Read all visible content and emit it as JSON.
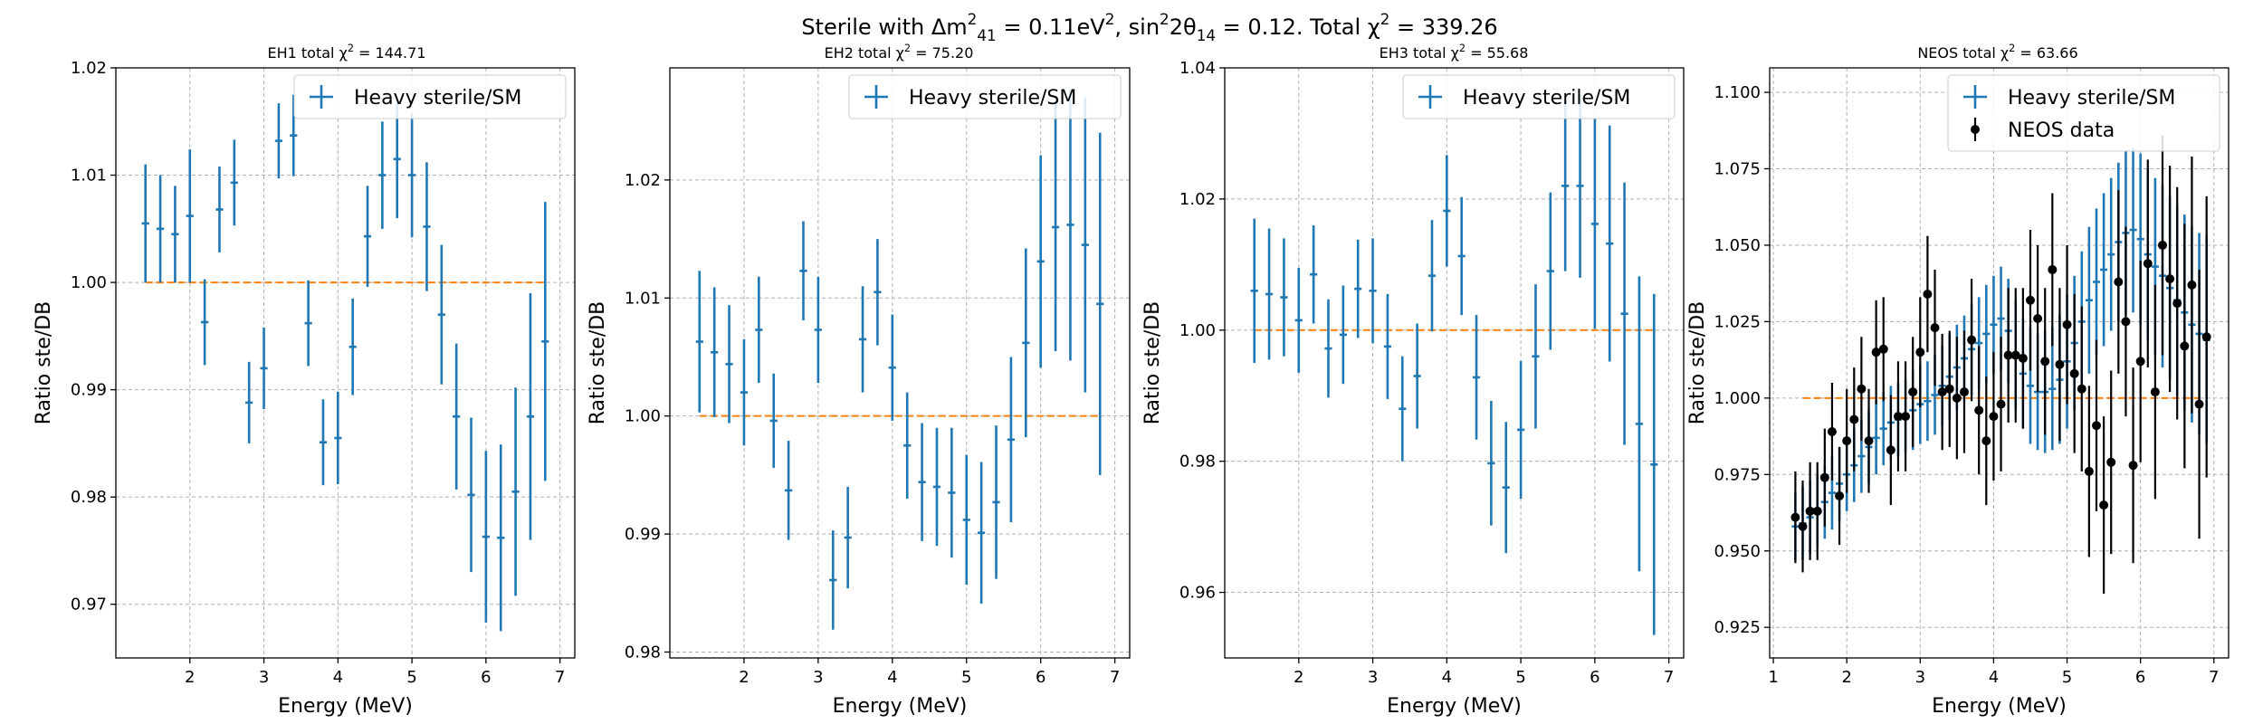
{
  "suptitle_parts": [
    "Sterile with Δm",
    "2",
    "41",
    " = 0.11eV",
    "2",
    ", sin",
    "2",
    "2θ",
    "14",
    " = 0.12. Total χ",
    "2",
    " = 339.26"
  ],
  "colors": {
    "model": "#1f77b4",
    "reference": "#ff7f0e",
    "data": "#000000",
    "grid": "#b0b0b0"
  },
  "chart_data": [
    {
      "type": "scatter",
      "title_parts": [
        "EH1 total χ",
        "2",
        " = 144.71"
      ],
      "xlabel": "Energy (MeV)",
      "ylabel": "Ratio ste/DB",
      "xlim": [
        1.0,
        7.2
      ],
      "ylim": [
        0.965,
        1.02
      ],
      "xticks": [
        2,
        3,
        4,
        5,
        6,
        7
      ],
      "yticks": [
        0.97,
        0.98,
        0.99,
        1.0,
        1.01,
        1.02
      ],
      "ytick_labels": [
        "0.97",
        "0.98",
        "0.99",
        "1.00",
        "1.01",
        "1.02"
      ],
      "grid": true,
      "legend_position": "upper right",
      "legend": [
        "Heavy sterile/SM"
      ],
      "reference_line": {
        "y": 1.0,
        "x": [
          1.4,
          6.8
        ]
      },
      "series": [
        {
          "name": "Heavy sterile/SM",
          "style": "errorbar-cross",
          "xerr": 0.05,
          "x": [
            1.4,
            1.6,
            1.8,
            2.0,
            2.2,
            2.4,
            2.6,
            2.8,
            3.0,
            3.2,
            3.4,
            3.6,
            3.8,
            4.0,
            4.2,
            4.4,
            4.6,
            4.8,
            5.0,
            5.2,
            5.4,
            5.6,
            5.8,
            6.0,
            6.2,
            6.4,
            6.6,
            6.8
          ],
          "y": [
            1.0055,
            1.005,
            1.0045,
            1.0062,
            0.9963,
            1.0068,
            1.0093,
            0.9888,
            0.992,
            1.0132,
            1.0137,
            0.9962,
            0.9851,
            0.9855,
            0.994,
            1.0043,
            1.01,
            1.0115,
            1.01,
            1.0052,
            0.997,
            0.9875,
            0.9802,
            0.9763,
            0.9762,
            0.9805,
            0.9875,
            0.9945
          ],
          "yerr": [
            0.0055,
            0.005,
            0.0045,
            0.0062,
            0.004,
            0.004,
            0.004,
            0.0038,
            0.0038,
            0.0035,
            0.0038,
            0.004,
            0.004,
            0.0043,
            0.0045,
            0.0047,
            0.005,
            0.0055,
            0.0058,
            0.006,
            0.0065,
            0.0068,
            0.0072,
            0.008,
            0.0087,
            0.0097,
            0.0115,
            0.013
          ]
        }
      ]
    },
    {
      "type": "scatter",
      "title_parts": [
        "EH2 total χ",
        "2",
        " = 75.20"
      ],
      "xlabel": "Energy (MeV)",
      "ylabel": "Ratio ste/DB",
      "xlim": [
        1.0,
        7.2
      ],
      "ylim": [
        0.9795,
        1.0295
      ],
      "xticks": [
        2,
        3,
        4,
        5,
        6,
        7
      ],
      "yticks": [
        0.98,
        0.99,
        1.0,
        1.01,
        1.02
      ],
      "ytick_labels": [
        "0.98",
        "0.99",
        "1.00",
        "1.01",
        "1.02"
      ],
      "grid": true,
      "legend_position": "upper right",
      "legend": [
        "Heavy sterile/SM"
      ],
      "reference_line": {
        "y": 1.0,
        "x": [
          1.4,
          6.8
        ]
      },
      "series": [
        {
          "name": "Heavy sterile/SM",
          "style": "errorbar-cross",
          "xerr": 0.05,
          "x": [
            1.4,
            1.6,
            1.8,
            2.0,
            2.2,
            2.4,
            2.6,
            2.8,
            3.0,
            3.2,
            3.4,
            3.6,
            3.8,
            4.0,
            4.2,
            4.4,
            4.6,
            4.8,
            5.0,
            5.2,
            5.4,
            5.6,
            5.8,
            6.0,
            6.2,
            6.4,
            6.6,
            6.8
          ],
          "y": [
            1.0063,
            1.0054,
            1.0044,
            1.002,
            1.0073,
            0.9996,
            0.9937,
            1.0123,
            1.0073,
            0.9861,
            0.9897,
            1.0065,
            1.0105,
            1.0041,
            0.9975,
            0.9944,
            0.994,
            0.9935,
            0.9912,
            0.9901,
            0.9927,
            0.998,
            1.0062,
            1.0131,
            1.016,
            1.0162,
            1.0145,
            1.0095
          ],
          "yerr": [
            0.006,
            0.0055,
            0.005,
            0.0045,
            0.0045,
            0.004,
            0.0042,
            0.0042,
            0.0045,
            0.0042,
            0.0043,
            0.0045,
            0.0045,
            0.0045,
            0.0045,
            0.005,
            0.005,
            0.0055,
            0.0055,
            0.006,
            0.0065,
            0.007,
            0.008,
            0.009,
            0.0105,
            0.0115,
            0.0125,
            0.0145
          ]
        }
      ]
    },
    {
      "type": "scatter",
      "title_parts": [
        "EH3 total χ",
        "2",
        " = 55.68"
      ],
      "xlabel": "Energy (MeV)",
      "ylabel": "Ratio ste/DB",
      "xlim": [
        1.0,
        7.2
      ],
      "ylim": [
        0.95,
        1.04
      ],
      "xticks": [
        2,
        3,
        4,
        5,
        6,
        7
      ],
      "yticks": [
        0.96,
        0.98,
        1.0,
        1.02,
        1.04
      ],
      "ytick_labels": [
        "0.96",
        "0.98",
        "1.00",
        "1.02",
        "1.04"
      ],
      "grid": true,
      "legend_position": "upper right",
      "legend": [
        "Heavy sterile/SM"
      ],
      "reference_line": {
        "y": 1.0,
        "x": [
          1.4,
          6.8
        ]
      },
      "series": [
        {
          "name": "Heavy sterile/SM",
          "style": "errorbar-cross",
          "xerr": 0.05,
          "x": [
            1.4,
            1.6,
            1.8,
            2.0,
            2.2,
            2.4,
            2.6,
            2.8,
            3.0,
            3.2,
            3.4,
            3.6,
            3.8,
            4.0,
            4.2,
            4.4,
            4.6,
            4.8,
            5.0,
            5.2,
            5.4,
            5.6,
            5.8,
            6.0,
            6.2,
            6.4,
            6.6,
            6.8
          ],
          "y": [
            1.006,
            1.0055,
            1.005,
            1.0015,
            1.0085,
            0.9972,
            0.9993,
            1.0063,
            1.006,
            0.9975,
            0.988,
            0.993,
            1.0083,
            1.0182,
            1.0113,
            0.9928,
            0.9797,
            0.976,
            0.9848,
            0.996,
            1.009,
            1.022,
            1.022,
            1.0162,
            1.0132,
            1.0025,
            0.9857,
            0.9795
          ],
          "yerr": [
            0.011,
            0.01,
            0.009,
            0.008,
            0.0075,
            0.0075,
            0.0075,
            0.0075,
            0.008,
            0.008,
            0.008,
            0.008,
            0.0085,
            0.0085,
            0.009,
            0.0095,
            0.0095,
            0.01,
            0.0105,
            0.011,
            0.012,
            0.013,
            0.014,
            0.016,
            0.018,
            0.02,
            0.0225,
            0.026
          ]
        }
      ]
    },
    {
      "type": "scatter",
      "title_parts": [
        "NEOS total χ",
        "2",
        " = 63.66"
      ],
      "xlabel": "Energy (MeV)",
      "ylabel": "Ratio ste/DB",
      "xlim": [
        0.95,
        7.2
      ],
      "ylim": [
        0.915,
        1.108
      ],
      "xticks": [
        1,
        2,
        3,
        4,
        5,
        6,
        7
      ],
      "yticks": [
        0.925,
        0.95,
        0.975,
        1.0,
        1.025,
        1.05,
        1.075,
        1.1
      ],
      "ytick_labels": [
        "0.925",
        "0.950",
        "0.975",
        "1.000",
        "1.025",
        "1.050",
        "1.075",
        "1.100"
      ],
      "grid": true,
      "legend_position": "upper right",
      "legend": [
        "Heavy sterile/SM",
        "NEOS data"
      ],
      "reference_line": {
        "y": 1.0,
        "x": [
          1.4,
          6.8
        ]
      },
      "series": [
        {
          "name": "Heavy sterile/SM",
          "style": "errorbar-cross",
          "xerr": 0.05,
          "x": [
            1.3,
            1.4,
            1.5,
            1.6,
            1.7,
            1.8,
            1.9,
            2.0,
            2.1,
            2.2,
            2.3,
            2.4,
            2.5,
            2.6,
            2.7,
            2.8,
            2.9,
            3.0,
            3.1,
            3.2,
            3.3,
            3.4,
            3.5,
            3.6,
            3.7,
            3.8,
            3.9,
            4.0,
            4.1,
            4.2,
            4.3,
            4.4,
            4.5,
            4.6,
            4.7,
            4.8,
            4.9,
            5.0,
            5.1,
            5.2,
            5.3,
            5.4,
            5.5,
            5.6,
            5.7,
            5.8,
            5.9,
            6.0,
            6.1,
            6.2,
            6.3,
            6.4,
            6.5,
            6.6,
            6.7,
            6.8,
            6.9
          ],
          "y": [
            0.958,
            0.959,
            0.961,
            0.963,
            0.966,
            0.969,
            0.972,
            0.975,
            0.978,
            0.981,
            0.984,
            0.987,
            0.99,
            0.992,
            0.993,
            0.994,
            0.996,
            0.998,
            0.999,
            1.001,
            1.004,
            1.007,
            1.01,
            1.013,
            1.016,
            1.018,
            1.021,
            1.024,
            1.026,
            1.022,
            1.014,
            1.008,
            1.004,
            1.002,
            1.002,
            1.003,
            1.006,
            1.012,
            1.018,
            1.025,
            1.032,
            1.038,
            1.042,
            1.047,
            1.051,
            1.054,
            1.055,
            1.052,
            1.047,
            1.043,
            1.04,
            1.036,
            1.032,
            1.028,
            1.024,
            1.021,
            1.019
          ],
          "yerr": [
            0.011,
            0.012,
            0.012,
            0.012,
            0.012,
            0.012,
            0.012,
            0.012,
            0.012,
            0.012,
            0.012,
            0.012,
            0.012,
            0.012,
            0.012,
            0.012,
            0.013,
            0.013,
            0.013,
            0.013,
            0.013,
            0.014,
            0.014,
            0.014,
            0.015,
            0.015,
            0.016,
            0.016,
            0.017,
            0.017,
            0.018,
            0.018,
            0.019,
            0.019,
            0.02,
            0.02,
            0.021,
            0.022,
            0.022,
            0.023,
            0.024,
            0.024,
            0.025,
            0.025,
            0.026,
            0.027,
            0.027,
            0.028,
            0.028,
            0.029,
            0.03,
            0.03,
            0.031,
            0.032,
            0.032,
            0.033,
            0.034
          ]
        },
        {
          "name": "NEOS data",
          "style": "errorbar-dot",
          "x": [
            1.3,
            1.4,
            1.5,
            1.6,
            1.7,
            1.8,
            1.9,
            2.0,
            2.1,
            2.2,
            2.3,
            2.4,
            2.5,
            2.6,
            2.7,
            2.8,
            2.9,
            3.0,
            3.1,
            3.2,
            3.3,
            3.4,
            3.5,
            3.6,
            3.7,
            3.8,
            3.9,
            4.0,
            4.1,
            4.2,
            4.3,
            4.4,
            4.5,
            4.6,
            4.7,
            4.8,
            4.9,
            5.0,
            5.1,
            5.2,
            5.3,
            5.4,
            5.5,
            5.6,
            5.7,
            5.8,
            5.9,
            6.0,
            6.1,
            6.2,
            6.3,
            6.4,
            6.5,
            6.6,
            6.7,
            6.8,
            6.9
          ],
          "y": [
            0.961,
            0.958,
            0.963,
            0.963,
            0.974,
            0.989,
            0.968,
            0.986,
            0.993,
            1.003,
            0.986,
            1.015,
            1.016,
            0.983,
            0.994,
            0.994,
            1.002,
            1.015,
            1.034,
            1.023,
            1.002,
            1.003,
            1.0,
            1.002,
            1.019,
            0.996,
            0.986,
            0.994,
            0.998,
            1.014,
            1.014,
            1.013,
            1.032,
            1.026,
            1.012,
            1.042,
            1.011,
            1.024,
            1.008,
            1.003,
            0.976,
            0.991,
            0.965,
            0.979,
            1.038,
            1.025,
            0.978,
            1.012,
            1.044,
            1.002,
            1.05,
            1.039,
            1.031,
            1.017,
            1.037,
            0.998,
            1.02
          ],
          "yerr": [
            0.015,
            0.015,
            0.016,
            0.016,
            0.016,
            0.016,
            0.016,
            0.017,
            0.017,
            0.017,
            0.017,
            0.017,
            0.017,
            0.018,
            0.018,
            0.018,
            0.018,
            0.018,
            0.019,
            0.019,
            0.019,
            0.019,
            0.02,
            0.02,
            0.02,
            0.021,
            0.021,
            0.021,
            0.022,
            0.022,
            0.022,
            0.023,
            0.023,
            0.024,
            0.024,
            0.025,
            0.025,
            0.026,
            0.026,
            0.027,
            0.028,
            0.028,
            0.029,
            0.03,
            0.03,
            0.031,
            0.032,
            0.033,
            0.034,
            0.035,
            0.036,
            0.037,
            0.038,
            0.04,
            0.042,
            0.044,
            0.046
          ]
        }
      ]
    }
  ]
}
